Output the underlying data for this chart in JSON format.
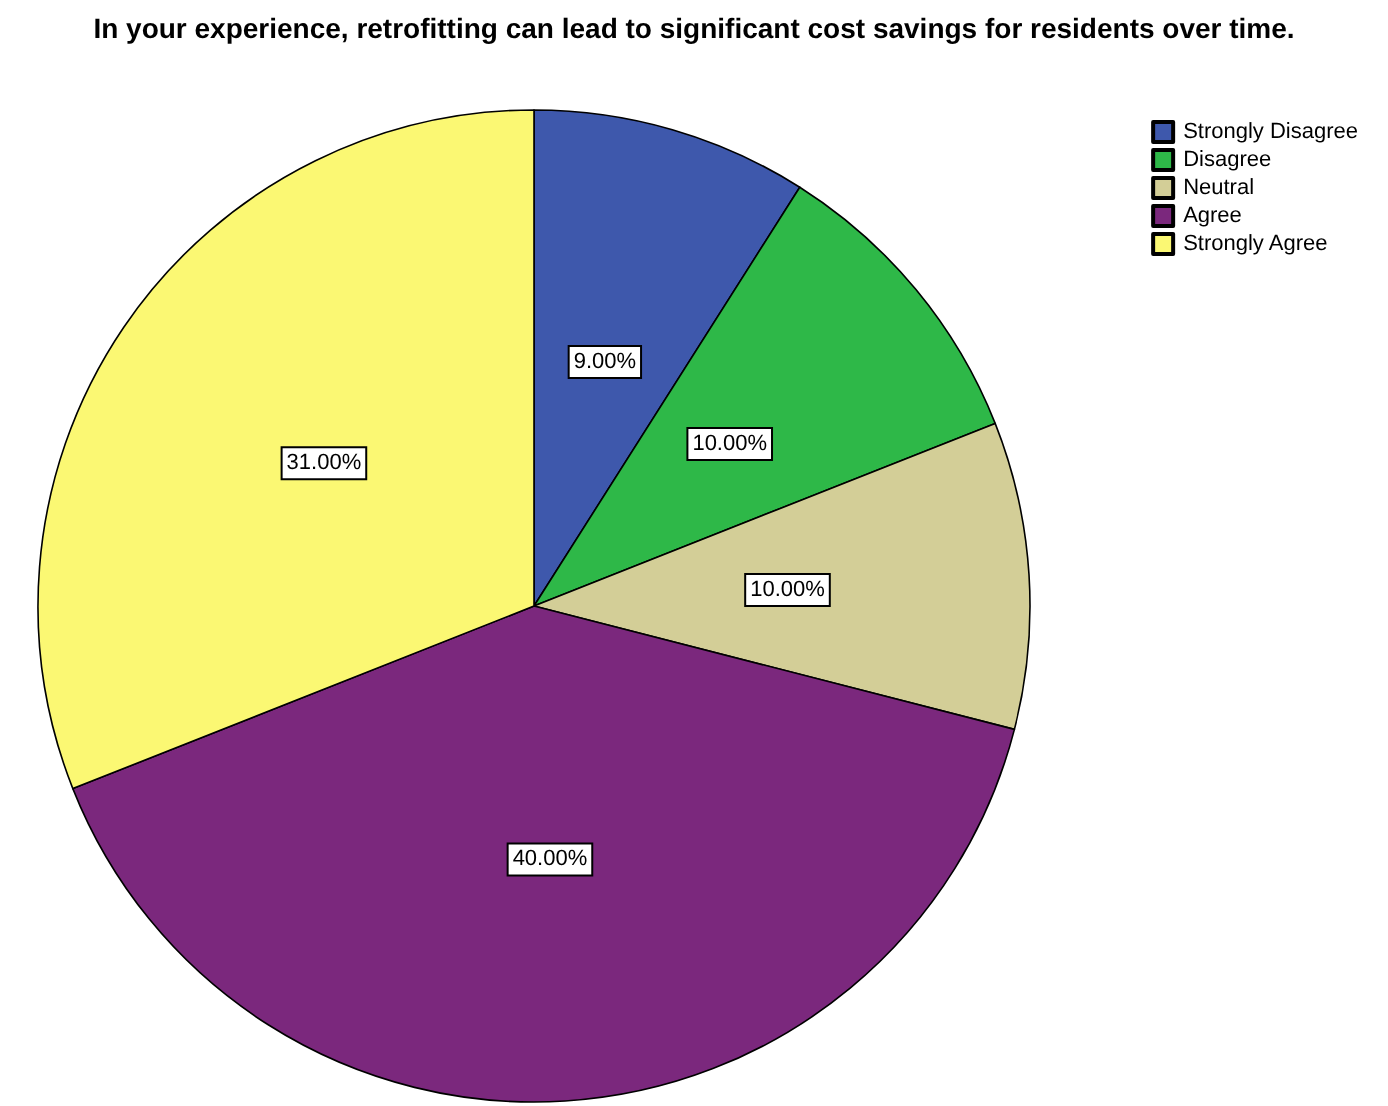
{
  "chart_data": {
    "type": "pie",
    "title": "In your experience, retrofitting can lead to significant cost savings for residents over time.",
    "categories": [
      "Strongly Disagree",
      "Disagree",
      "Neutral",
      "Agree",
      "Strongly Agree"
    ],
    "values": [
      9,
      10,
      10,
      40,
      31
    ],
    "colors": [
      "#3e58ac",
      "#2eb848",
      "#d3ce97",
      "#7b287d",
      "#fbf873"
    ],
    "value_labels": [
      "9.00%",
      "10.00%",
      "10.00%",
      "40.00%",
      "31.00%"
    ],
    "legend": "top right"
  }
}
